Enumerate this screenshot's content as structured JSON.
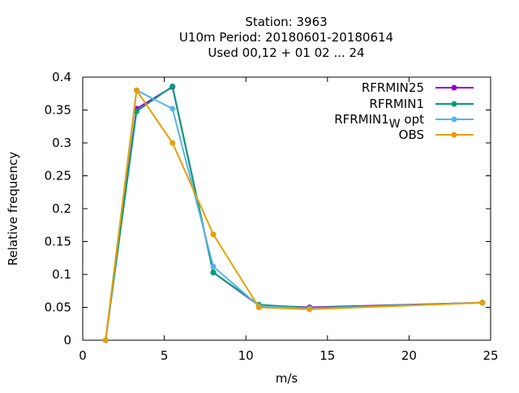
{
  "chart_data": {
    "type": "line",
    "title_lines": [
      "Station:      3963",
      "U10m  Period: 20180601-20180614",
      "Used  00,12  + 01 02 ... 24"
    ],
    "xlabel": "m/s",
    "ylabel": "Relative frequency",
    "xlim": [
      0,
      25
    ],
    "ylim": [
      0,
      0.4
    ],
    "xticks": [
      0,
      5,
      10,
      15,
      20,
      25
    ],
    "yticks": [
      0,
      0.05,
      0.1,
      0.15,
      0.2,
      0.25,
      0.3,
      0.35,
      0.4
    ],
    "ytick_labels": [
      "0",
      "0.05",
      "0.1",
      "0.15",
      "0.2",
      "0.25",
      "0.3",
      "0.35",
      "0.4"
    ],
    "grid": false,
    "legend_position": "top-right",
    "series": [
      {
        "name": "RFRMIN25",
        "color": "#9400d3",
        "points": [
          [
            1.4,
            0.0
          ],
          [
            3.3,
            0.352
          ],
          [
            5.5,
            0.385
          ],
          [
            8.0,
            0.103
          ],
          [
            10.8,
            0.053
          ],
          [
            13.9,
            0.05
          ],
          [
            24.5,
            0.057
          ]
        ]
      },
      {
        "name": "RFRMIN1",
        "color": "#009e73",
        "points": [
          [
            1.4,
            0.0
          ],
          [
            3.3,
            0.348
          ],
          [
            5.5,
            0.386
          ],
          [
            8.0,
            0.103
          ],
          [
            10.8,
            0.054
          ],
          [
            13.9,
            0.049
          ],
          [
            24.5,
            0.057
          ]
        ]
      },
      {
        "name": "RFRMIN1",
        "name_subscript": "W",
        "name_suffix": "opt",
        "color": "#56b4e9",
        "points": [
          [
            1.4,
            0.0
          ],
          [
            3.3,
            0.38
          ],
          [
            5.5,
            0.352
          ],
          [
            8.0,
            0.112
          ],
          [
            10.8,
            0.052
          ],
          [
            13.9,
            0.048
          ],
          [
            24.5,
            0.057
          ]
        ]
      },
      {
        "name": "OBS",
        "color": "#e69f00",
        "points": [
          [
            1.4,
            0.0
          ],
          [
            3.3,
            0.38
          ],
          [
            5.5,
            0.3
          ],
          [
            8.0,
            0.161
          ],
          [
            10.8,
            0.05
          ],
          [
            13.9,
            0.047
          ],
          [
            24.5,
            0.057
          ]
        ]
      }
    ]
  }
}
